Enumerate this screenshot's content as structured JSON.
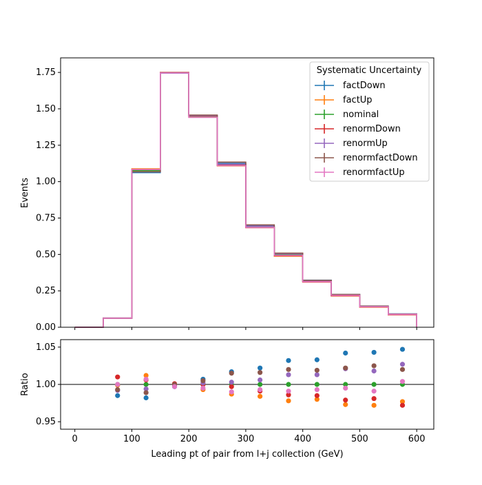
{
  "chart_data": [
    {
      "type": "line",
      "drawstyle": "steps",
      "ylabel": "Events",
      "xlim": [
        -25,
        630
      ],
      "ylim": [
        0,
        1.85
      ],
      "bin_edges": [
        0,
        50,
        100,
        150,
        200,
        250,
        300,
        350,
        400,
        450,
        500,
        550,
        600
      ],
      "xticks": [
        0,
        100,
        200,
        300,
        400,
        500,
        600
      ],
      "yticks": [
        "0.00",
        "0.25",
        "0.50",
        "0.75",
        "1.00",
        "1.25",
        "1.50",
        "1.75"
      ],
      "legend": {
        "title": "Systematic Uncertainty",
        "placement": "upper-right"
      },
      "series": [
        {
          "name": "factDown",
          "color": "#1f77b4",
          "values": [
            0,
            0.063,
            1.062,
            1.745,
            1.453,
            1.126,
            0.7,
            0.505,
            0.323,
            0.225,
            0.146,
            0.092
          ]
        },
        {
          "name": "factUp",
          "color": "#ff7f0e",
          "values": [
            0,
            0.062,
            1.088,
            1.748,
            1.443,
            1.108,
            0.686,
            0.488,
            0.311,
            0.215,
            0.138,
            0.087
          ]
        },
        {
          "name": "nominal",
          "color": "#2ca02c",
          "values": [
            0,
            0.062,
            1.076,
            1.748,
            1.45,
            1.116,
            0.69,
            0.498,
            0.316,
            0.22,
            0.142,
            0.089
          ]
        },
        {
          "name": "renormDown",
          "color": "#d62728",
          "values": [
            0,
            0.063,
            1.083,
            1.75,
            1.451,
            1.112,
            0.684,
            0.491,
            0.311,
            0.216,
            0.139,
            0.086
          ]
        },
        {
          "name": "renormUp",
          "color": "#9467bd",
          "values": [
            0,
            0.062,
            1.068,
            1.746,
            1.453,
            1.12,
            0.694,
            0.505,
            0.32,
            0.224,
            0.144,
            0.091
          ]
        },
        {
          "name": "renormfactDown",
          "color": "#8c564b",
          "values": [
            0,
            0.062,
            1.068,
            1.748,
            1.457,
            1.134,
            0.703,
            0.509,
            0.322,
            0.225,
            0.145,
            0.091
          ]
        },
        {
          "name": "renormfactUp",
          "color": "#e377c2",
          "values": [
            0,
            0.062,
            1.084,
            1.746,
            1.441,
            1.11,
            0.686,
            0.494,
            0.313,
            0.219,
            0.141,
            0.089
          ]
        }
      ]
    },
    {
      "type": "scatter",
      "xlabel": "Leading pt of pair from l+j collection (GeV)",
      "ylabel": "Ratio",
      "xlim": [
        -25,
        630
      ],
      "ylim": [
        0.94,
        1.06
      ],
      "xticks": [
        0,
        100,
        200,
        300,
        400,
        500,
        600
      ],
      "yticks": [
        "0.95",
        "1.00",
        "1.05"
      ],
      "reference_line": 1.0,
      "x": [
        75,
        125,
        175,
        225,
        275,
        325,
        375,
        425,
        475,
        525,
        575
      ],
      "series": [
        {
          "name": "factDown",
          "color": "#1f77b4",
          "values": [
            0.985,
            0.982,
            0.997,
            1.007,
            1.017,
            1.022,
            1.032,
            1.033,
            1.042,
            1.043,
            1.047
          ]
        },
        {
          "name": "factUp",
          "color": "#ff7f0e",
          "values": [
            0.999,
            1.012,
            1.0,
            0.993,
            0.987,
            0.984,
            0.978,
            0.98,
            0.973,
            0.972,
            0.977
          ]
        },
        {
          "name": "nominal",
          "color": "#2ca02c",
          "values": [
            1.0,
            1.0,
            1.0,
            1.0,
            1.0,
            1.0,
            1.0,
            1.0,
            1.0,
            1.0,
            1.0
          ]
        },
        {
          "name": "renormDown",
          "color": "#d62728",
          "values": [
            1.01,
            1.006,
            1.001,
            1.0,
            0.997,
            0.991,
            0.986,
            0.985,
            0.979,
            0.981,
            0.972
          ]
        },
        {
          "name": "renormUp",
          "color": "#9467bd",
          "values": [
            0.992,
            0.994,
            0.998,
            1.002,
            1.003,
            1.006,
            1.013,
            1.013,
            1.021,
            1.018,
            1.027
          ]
        },
        {
          "name": "renormfactDown",
          "color": "#8c564b",
          "values": [
            0.993,
            0.989,
            1.0,
            1.005,
            1.015,
            1.016,
            1.02,
            1.019,
            1.022,
            1.025,
            1.02
          ]
        },
        {
          "name": "renormfactUp",
          "color": "#e377c2",
          "values": [
            1.0,
            1.007,
            0.997,
            0.995,
            0.99,
            0.993,
            0.991,
            0.993,
            0.995,
            0.991,
            1.004
          ]
        }
      ]
    }
  ]
}
